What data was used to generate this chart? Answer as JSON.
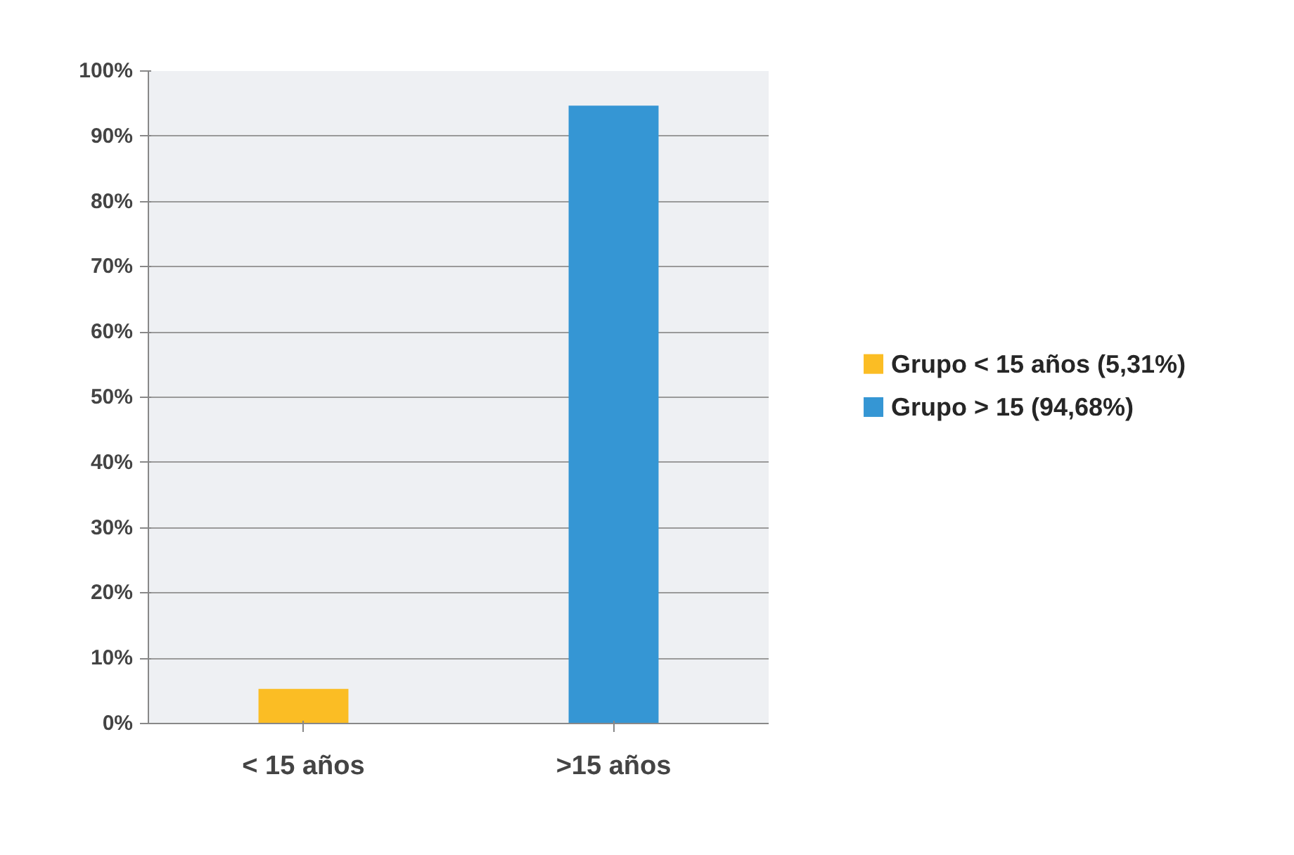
{
  "chart_data": {
    "type": "bar",
    "categories": [
      "< 15 años",
      ">15 años"
    ],
    "series": [
      {
        "name": "Grupo < 15 años (5,31%)",
        "color": "#fbbd24",
        "values": [
          5.31,
          null
        ]
      },
      {
        "name": "Grupo > 15 (94,68%)",
        "color": "#3596d4",
        "values": [
          null,
          94.68
        ]
      }
    ],
    "ylim": [
      0,
      100
    ],
    "yticks": [
      {
        "value": 0,
        "label": "0%"
      },
      {
        "value": 10,
        "label": "10%"
      },
      {
        "value": 20,
        "label": "20%"
      },
      {
        "value": 30,
        "label": "30%"
      },
      {
        "value": 40,
        "label": "40%"
      },
      {
        "value": 50,
        "label": "50%"
      },
      {
        "value": 60,
        "label": "60%"
      },
      {
        "value": 70,
        "label": "70%"
      },
      {
        "value": 80,
        "label": "80%"
      },
      {
        "value": 90,
        "label": "90%"
      },
      {
        "value": 100,
        "label": "100%"
      }
    ],
    "grid": "y",
    "legend": "right"
  }
}
